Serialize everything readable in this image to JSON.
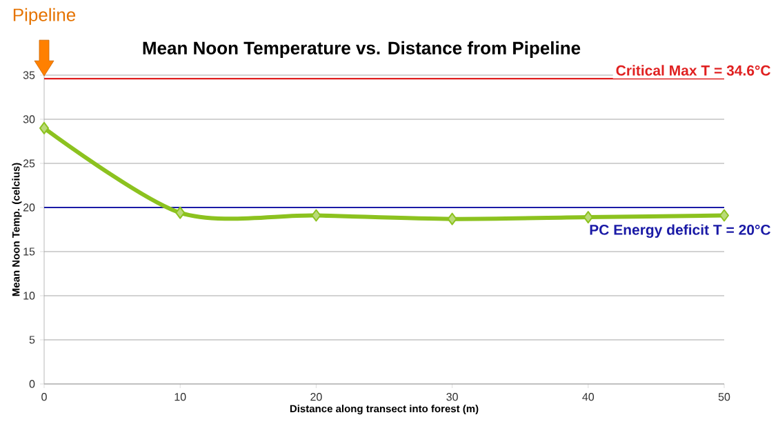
{
  "chart_data": {
    "type": "line",
    "title": "Mean Noon Temperature vs. Distance from Pipeline",
    "xlabel": "Distance along transect into forest (m)",
    "ylabel": "Mean Noon Temp. (celcius)",
    "x": [
      0,
      10,
      20,
      30,
      40,
      50
    ],
    "series": [
      {
        "color": "#8cc21f",
        "values": [
          29.0,
          19.4,
          19.1,
          18.7,
          18.9,
          19.1
        ]
      }
    ],
    "xlim": [
      0,
      50
    ],
    "xticks": [
      0,
      10,
      20,
      30,
      40,
      50
    ],
    "ylim": [
      0,
      35
    ],
    "yticks": [
      0,
      5,
      10,
      15,
      20,
      25,
      30,
      35
    ],
    "grid": "y",
    "marker": "diamond",
    "line_style": "solid",
    "ref_lines": [
      {
        "axis": "y",
        "value": 34.6,
        "label": "Critical Max T = 34.6°C",
        "color": "#e02020"
      },
      {
        "axis": "y",
        "value": 20,
        "label": "PC Energy deficit T = 20°C",
        "color": "#1a1aa6"
      }
    ],
    "annotations": [
      "Pipeline"
    ]
  }
}
